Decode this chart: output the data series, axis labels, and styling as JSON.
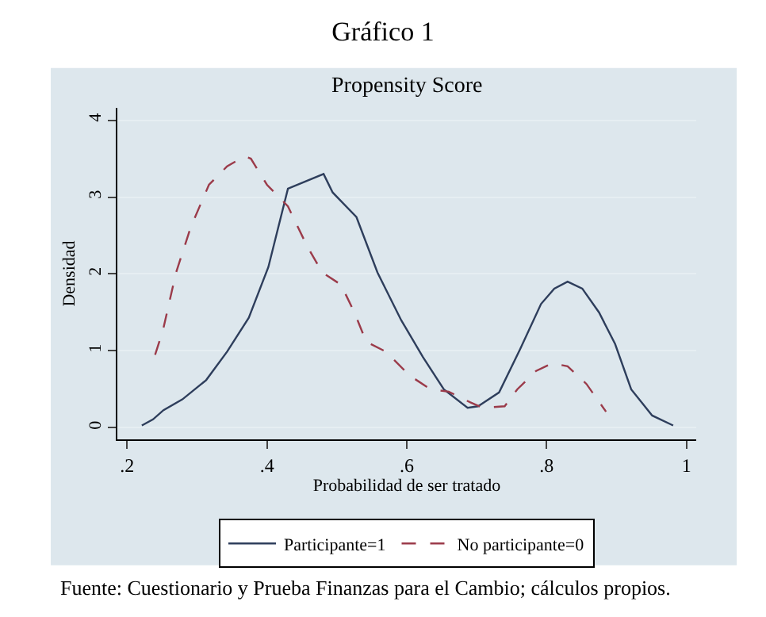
{
  "chart_data": {
    "type": "line",
    "title": "Gráfico 1",
    "subtitle": "Propensity Score",
    "xlabel": "Probabilidad de ser tratado",
    "ylabel": "Densidad",
    "series": [
      {
        "name": "Participante=1",
        "color": "#2e3e5c",
        "line_style": "solid",
        "x": [
          0.221,
          0.237,
          0.252,
          0.279,
          0.313,
          0.343,
          0.374,
          0.402,
          0.43,
          0.481,
          0.494,
          0.528,
          0.558,
          0.592,
          0.623,
          0.653,
          0.687,
          0.702,
          0.732,
          0.762,
          0.792,
          0.811,
          0.83,
          0.851,
          0.875,
          0.898,
          0.921,
          0.951,
          0.981
        ],
        "values": [
          0.03,
          0.11,
          0.23,
          0.37,
          0.62,
          0.99,
          1.43,
          2.09,
          3.11,
          3.3,
          3.06,
          2.74,
          2.02,
          1.4,
          0.92,
          0.5,
          0.26,
          0.28,
          0.46,
          1.02,
          1.61,
          1.81,
          1.9,
          1.81,
          1.5,
          1.09,
          0.5,
          0.16,
          0.03
        ]
      },
      {
        "name": "No participante=0",
        "color": "#9b3b4a",
        "line_style": "dashed",
        "x": [
          0.24,
          0.251,
          0.27,
          0.291,
          0.317,
          0.343,
          0.368,
          0.377,
          0.4,
          0.43,
          0.457,
          0.479,
          0.506,
          0.525,
          0.542,
          0.57,
          0.604,
          0.634,
          0.66,
          0.691,
          0.709,
          0.74,
          0.758,
          0.785,
          0.808,
          0.83,
          0.857,
          0.885
        ],
        "values": [
          0.95,
          1.26,
          2.02,
          2.61,
          3.16,
          3.4,
          3.53,
          3.5,
          3.16,
          2.88,
          2.37,
          2.02,
          1.86,
          1.5,
          1.12,
          0.99,
          0.68,
          0.5,
          0.47,
          0.33,
          0.26,
          0.28,
          0.5,
          0.74,
          0.84,
          0.8,
          0.57,
          0.21
        ]
      }
    ],
    "xlim": [
      0.186,
      1.014
    ],
    "ylim": [
      -0.15,
      4.16
    ],
    "xticks": [
      {
        "value": 0.2,
        "label": ".2"
      },
      {
        "value": 0.4,
        "label": ".4"
      },
      {
        "value": 0.6,
        "label": ".6"
      },
      {
        "value": 0.8,
        "label": ".8"
      },
      {
        "value": 1,
        "label": "1"
      }
    ],
    "yticks": [
      0,
      1,
      2,
      3,
      4
    ],
    "grid": "y",
    "legend": "bottom",
    "marker": "none",
    "annotations": [
      "Fuente: Cuestionario y Prueba Finanzas para el Cambio; cálculos propios."
    ]
  }
}
